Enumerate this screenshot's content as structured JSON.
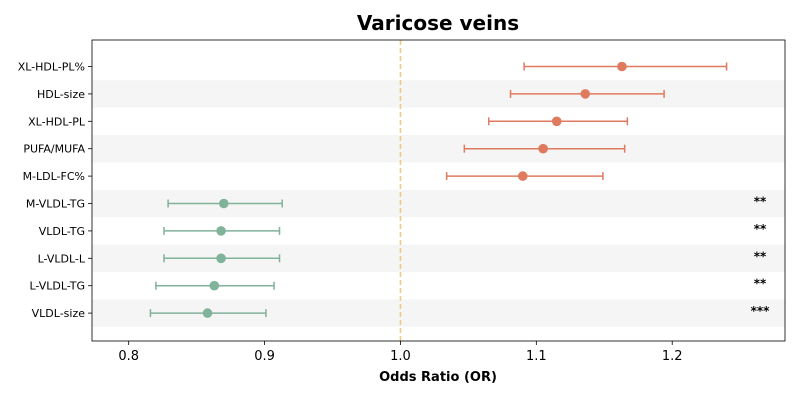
{
  "chart_data": {
    "type": "forest",
    "title": "Varicose veins",
    "xlabel": "Odds Ratio (OR)",
    "xlim": [
      0.773,
      1.283
    ],
    "xticks": [
      "0.8",
      "0.9",
      "1.0",
      "1.1",
      "1.2"
    ],
    "reference_line": 1.0,
    "colors": {
      "positive": "#e07a5f",
      "negative": "#81b29a",
      "reference": "#f0c987",
      "band": "#f5f5f5"
    },
    "rows": [
      {
        "label": "XL-HDL-PL%",
        "or": 1.163,
        "lo": 1.091,
        "hi": 1.24,
        "sig": ""
      },
      {
        "label": "HDL-size",
        "or": 1.136,
        "lo": 1.081,
        "hi": 1.194,
        "sig": ""
      },
      {
        "label": "XL-HDL-PL",
        "or": 1.115,
        "lo": 1.065,
        "hi": 1.167,
        "sig": ""
      },
      {
        "label": "PUFA/MUFA",
        "or": 1.105,
        "lo": 1.047,
        "hi": 1.165,
        "sig": ""
      },
      {
        "label": "M-LDL-FC%",
        "or": 1.09,
        "lo": 1.034,
        "hi": 1.149,
        "sig": ""
      },
      {
        "label": "M-VLDL-TG",
        "or": 0.87,
        "lo": 0.829,
        "hi": 0.913,
        "sig": "**"
      },
      {
        "label": "VLDL-TG",
        "or": 0.868,
        "lo": 0.826,
        "hi": 0.911,
        "sig": "**"
      },
      {
        "label": "L-VLDL-L",
        "or": 0.868,
        "lo": 0.826,
        "hi": 0.911,
        "sig": "**"
      },
      {
        "label": "L-VLDL-TG",
        "or": 0.863,
        "lo": 0.82,
        "hi": 0.907,
        "sig": "**"
      },
      {
        "label": "VLDL-size",
        "or": 0.858,
        "lo": 0.816,
        "hi": 0.901,
        "sig": "***"
      }
    ]
  }
}
